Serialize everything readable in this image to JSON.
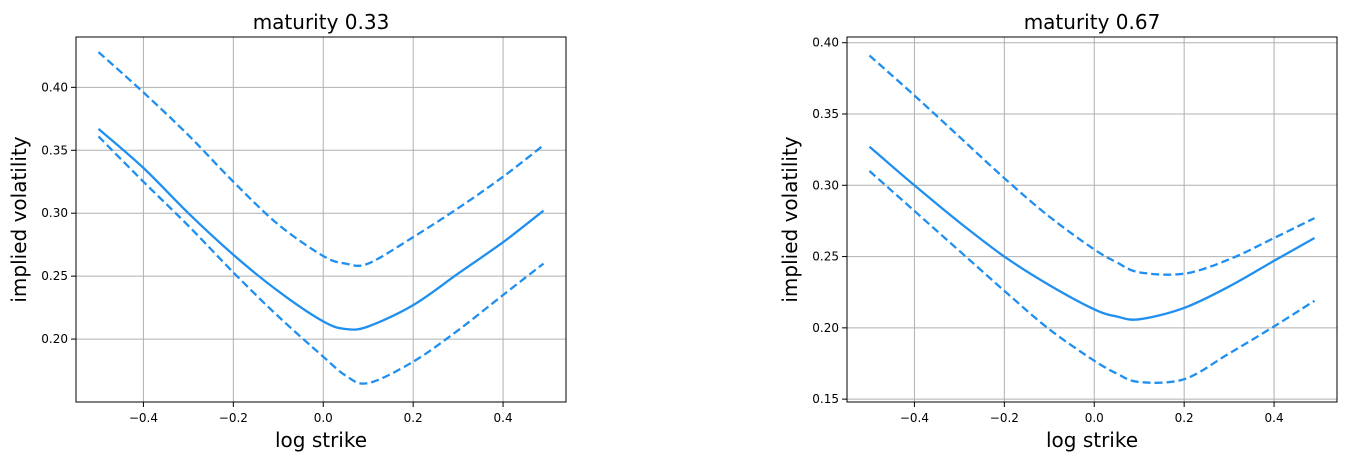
{
  "chart_data": [
    {
      "type": "line",
      "title": "maturity 0.33",
      "xlabel": "log strike",
      "ylabel": "implied volatility",
      "xlim": [
        -0.55,
        0.54
      ],
      "ylim": [
        0.15,
        0.44
      ],
      "xticks": [
        -0.4,
        -0.2,
        0.0,
        0.2,
        0.4
      ],
      "xtick_labels": [
        "−0.4",
        "−0.2",
        "0.0",
        "0.2",
        "0.4"
      ],
      "yticks": [
        0.2,
        0.25,
        0.3,
        0.35,
        0.4
      ],
      "ytick_labels": [
        "0.20",
        "0.25",
        "0.30",
        "0.35",
        "0.40"
      ],
      "grid": true,
      "color": "#1f8ff0",
      "x": [
        -0.5,
        -0.4,
        -0.3,
        -0.2,
        -0.1,
        0.0,
        0.05,
        0.1,
        0.2,
        0.3,
        0.4,
        0.49
      ],
      "series": [
        {
          "style": "solid",
          "values": [
            0.367,
            0.336,
            0.3,
            0.267,
            0.238,
            0.214,
            0.208,
            0.21,
            0.227,
            0.252,
            0.277,
            0.302
          ]
        },
        {
          "style": "dashed",
          "values": [
            0.428,
            0.396,
            0.362,
            0.325,
            0.291,
            0.266,
            0.26,
            0.26,
            0.281,
            0.304,
            0.329,
            0.354
          ]
        },
        {
          "style": "dashed",
          "values": [
            0.361,
            0.325,
            0.29,
            0.253,
            0.218,
            0.186,
            0.171,
            0.165,
            0.182,
            0.207,
            0.235,
            0.26
          ]
        }
      ]
    },
    {
      "type": "line",
      "title": "maturity 0.67",
      "xlabel": "log strike",
      "ylabel": "implied volatility",
      "xlim": [
        -0.55,
        0.54
      ],
      "ylim": [
        0.148,
        0.404
      ],
      "xticks": [
        -0.4,
        -0.2,
        0.0,
        0.2,
        0.4
      ],
      "xtick_labels": [
        "−0.4",
        "−0.2",
        "0.0",
        "0.2",
        "0.4"
      ],
      "yticks": [
        0.15,
        0.2,
        0.25,
        0.3,
        0.35,
        0.4
      ],
      "ytick_labels": [
        "0.15",
        "0.20",
        "0.25",
        "0.30",
        "0.35",
        "0.40"
      ],
      "grid": true,
      "color": "#1f8ff0",
      "x": [
        -0.5,
        -0.4,
        -0.3,
        -0.2,
        -0.1,
        0.0,
        0.05,
        0.1,
        0.2,
        0.3,
        0.4,
        0.49
      ],
      "series": [
        {
          "style": "solid",
          "values": [
            0.327,
            0.3,
            0.274,
            0.25,
            0.23,
            0.213,
            0.208,
            0.206,
            0.214,
            0.229,
            0.247,
            0.263
          ]
        },
        {
          "style": "dashed",
          "values": [
            0.391,
            0.363,
            0.334,
            0.305,
            0.278,
            0.255,
            0.246,
            0.239,
            0.238,
            0.248,
            0.263,
            0.277
          ]
        },
        {
          "style": "dashed",
          "values": [
            0.31,
            0.282,
            0.254,
            0.226,
            0.199,
            0.177,
            0.168,
            0.162,
            0.164,
            0.182,
            0.201,
            0.219
          ]
        }
      ]
    }
  ]
}
